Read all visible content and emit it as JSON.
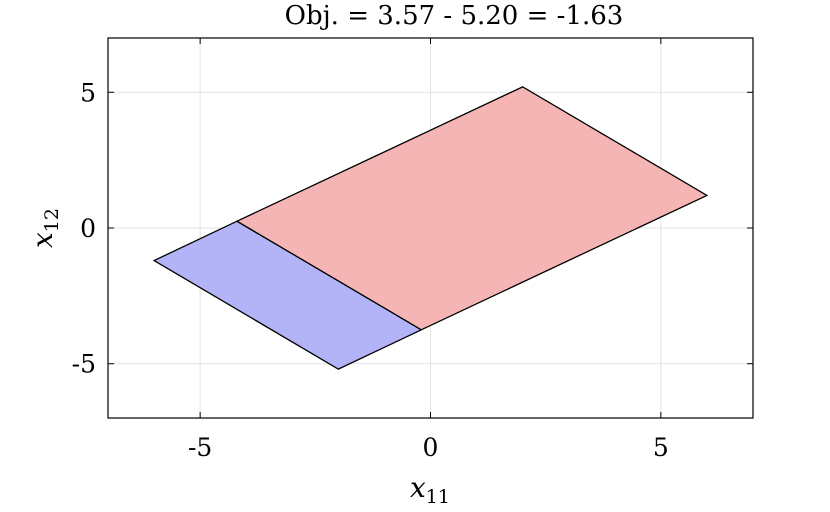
{
  "chart_data": {
    "type": "area",
    "title": "Obj. = 3.57 - 5.20 = -1.63",
    "xlabel": {
      "var": "x",
      "sub": "11"
    },
    "ylabel": {
      "var": "x",
      "sub": "12"
    },
    "xlim": [
      -7,
      7
    ],
    "ylim": [
      -7,
      7
    ],
    "xticks": [
      -5,
      0,
      5
    ],
    "yticks": [
      -5,
      0,
      5
    ],
    "xtick_labels": [
      "-5",
      "0",
      "5"
    ],
    "ytick_labels": [
      "-5",
      "0",
      "5"
    ],
    "grid": true,
    "series": [
      {
        "color": "#b3b3f7",
        "edge_color": "#000000",
        "vertices": [
          [
            -6.0,
            -1.2
          ],
          [
            -4.2,
            0.25
          ],
          [
            -0.2,
            -3.75
          ],
          [
            -2.0,
            -5.2
          ]
        ]
      },
      {
        "color": "#f5b5b5",
        "edge_color": "#000000",
        "vertices": [
          [
            -4.2,
            0.25
          ],
          [
            2.0,
            5.2
          ],
          [
            6.0,
            1.2
          ],
          [
            -0.2,
            -3.75
          ]
        ]
      }
    ]
  }
}
